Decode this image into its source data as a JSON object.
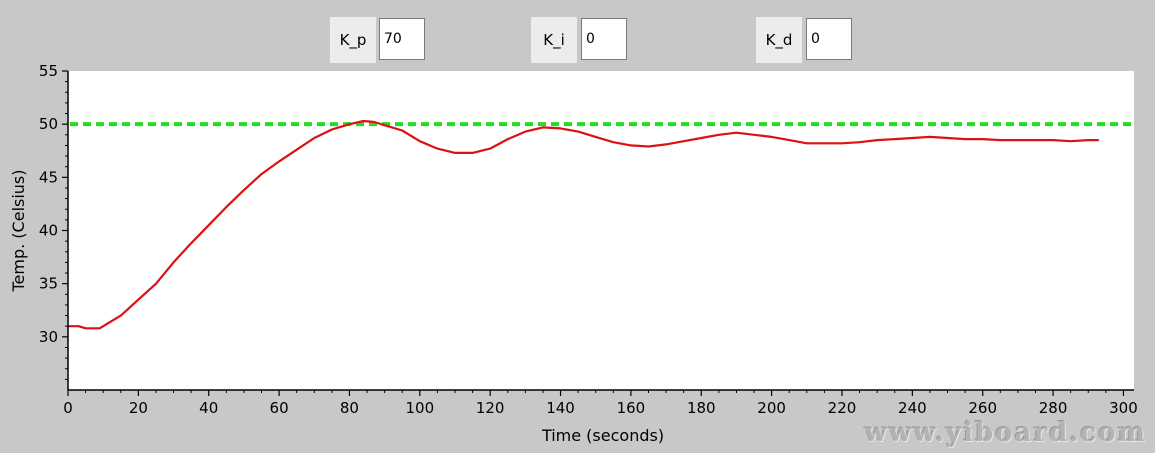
{
  "controls": {
    "kp": {
      "label": "K_p",
      "value": "70"
    },
    "ki": {
      "label": "K_i",
      "value": "0"
    },
    "kd": {
      "label": "K_d",
      "value": "0"
    }
  },
  "watermark": "www.yiboard.com",
  "colors": {
    "setpoint": "#22dd22",
    "temperature": "#dd1111",
    "plot_background": "#ffffff",
    "window_background": "#c8c8c8"
  },
  "chart_data": {
    "type": "line",
    "title": "",
    "xlabel": "Time (seconds)",
    "ylabel": "Temp. (Celsius)",
    "xlim": [
      0,
      303
    ],
    "ylim": [
      25,
      55
    ],
    "xticks": [
      0,
      20,
      40,
      60,
      80,
      100,
      120,
      140,
      160,
      180,
      200,
      220,
      240,
      260,
      280,
      300
    ],
    "yticks": [
      30,
      35,
      40,
      45,
      50,
      55
    ],
    "grid": false,
    "legend": "none",
    "setpoint": 50,
    "setpoint_style": "dashed",
    "series": [
      {
        "x": [
          0,
          3,
          5,
          9,
          12,
          15,
          20,
          25,
          30,
          35,
          40,
          45,
          50,
          55,
          60,
          65,
          70,
          75,
          80,
          84,
          87,
          90,
          95,
          100,
          105,
          110,
          115,
          120,
          125,
          130,
          135,
          140,
          145,
          150,
          155,
          160,
          165,
          170,
          175,
          180,
          185,
          190,
          195,
          200,
          205,
          210,
          215,
          220,
          225,
          230,
          235,
          240,
          245,
          250,
          255,
          260,
          265,
          270,
          275,
          280,
          285,
          290,
          293
        ],
        "y": [
          31.0,
          31.0,
          30.8,
          30.8,
          31.4,
          32.0,
          33.5,
          35.0,
          37.0,
          38.8,
          40.5,
          42.2,
          43.8,
          45.3,
          46.5,
          47.6,
          48.7,
          49.5,
          50.0,
          50.3,
          50.2,
          49.9,
          49.4,
          48.4,
          47.7,
          47.3,
          47.3,
          47.7,
          48.6,
          49.3,
          49.7,
          49.6,
          49.3,
          48.8,
          48.3,
          48.0,
          47.9,
          48.1,
          48.4,
          48.7,
          49.0,
          49.2,
          49.0,
          48.8,
          48.5,
          48.2,
          48.2,
          48.2,
          48.3,
          48.5,
          48.6,
          48.7,
          48.8,
          48.7,
          48.6,
          48.6,
          48.5,
          48.5,
          48.5,
          48.5,
          48.4,
          48.5,
          48.5
        ]
      }
    ]
  }
}
